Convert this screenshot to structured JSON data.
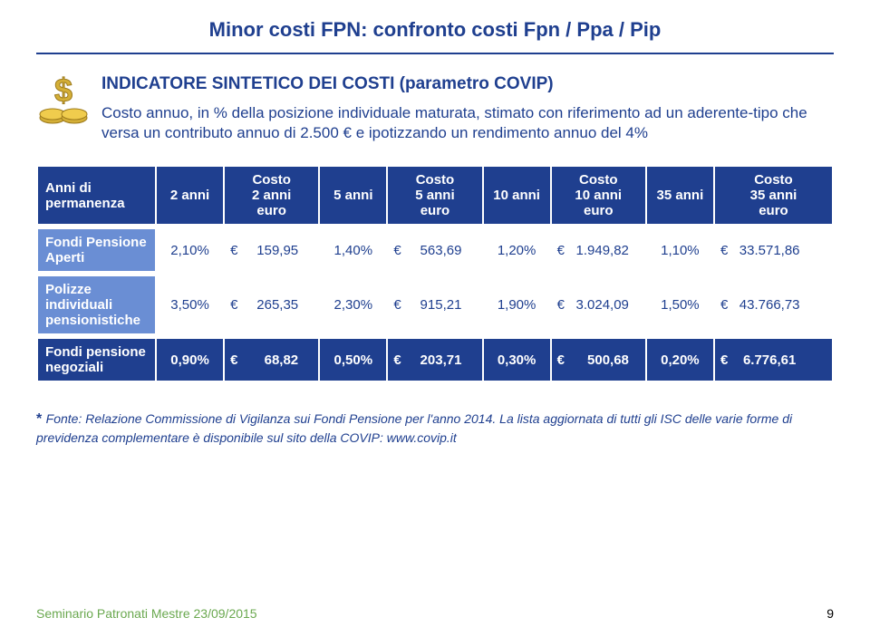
{
  "colors": {
    "title": "#1f3f8f",
    "rule": "#1f3f8f",
    "intro": "#1f3f8f",
    "th_bg": "#1f3f8f",
    "row_bg_light": "#6a8ed4",
    "row_bg_dark": "#1f3f8f",
    "footnote": "#1f3f8f",
    "footer": "#6aa84f"
  },
  "title": "Minor costi FPN: confronto costi Fpn / Ppa / Pip",
  "intro": {
    "heading": "INDICATORE SINTETICO DEI COSTI (parametro COVIP)",
    "body": "Costo annuo, in % della posizione individuale maturata, stimato con riferimento ad un aderente-tipo che versa un contributo annuo di 2.500 € e ipotizzando un rendimento annuo del 4%"
  },
  "table": {
    "widths": [
      "15%",
      "8.5%",
      "12%",
      "8.5%",
      "12%",
      "8.5%",
      "12%",
      "8.5%",
      "15%"
    ],
    "headers": [
      "Anni di permanenza",
      "2 anni",
      "Costo\n2 anni\neuro",
      "5 anni",
      "Costo\n5 anni\neuro",
      "10 anni",
      "Costo\n10 anni\neuro",
      "35 anni",
      "Costo\n35 anni\neuro"
    ],
    "rows": [
      {
        "label": "Fondi Pensione Aperti",
        "cells": [
          "2,10%",
          "€     159,95",
          "1,40%",
          "€     563,69",
          "1,20%",
          "€   1.949,82",
          "1,10%",
          "€   33.571,86"
        ]
      },
      {
        "label": "Polizze individuali pensionistiche",
        "cells": [
          "3,50%",
          "€     265,35",
          "2,30%",
          "€     915,21",
          "1,90%",
          "€   3.024,09",
          "1,50%",
          "€   43.766,73"
        ]
      },
      {
        "label": "Fondi pensione negoziali",
        "cells": [
          "0,90%",
          "€       68,82",
          "0,50%",
          "€     203,71",
          "0,30%",
          "€      500,68",
          "0,20%",
          "€    6.776,61"
        ],
        "highlight": true
      }
    ]
  },
  "footnote": "Fonte: Relazione Commissione di Vigilanza sui Fondi Pensione per l'anno 2014. La lista aggiornata di tutti gli ISC delle varie forme di previdenza complementare è disponibile sul sito della COVIP: www.covip.it",
  "footer": "Seminario Patronati Mestre 23/09/2015",
  "pagenum": "9"
}
